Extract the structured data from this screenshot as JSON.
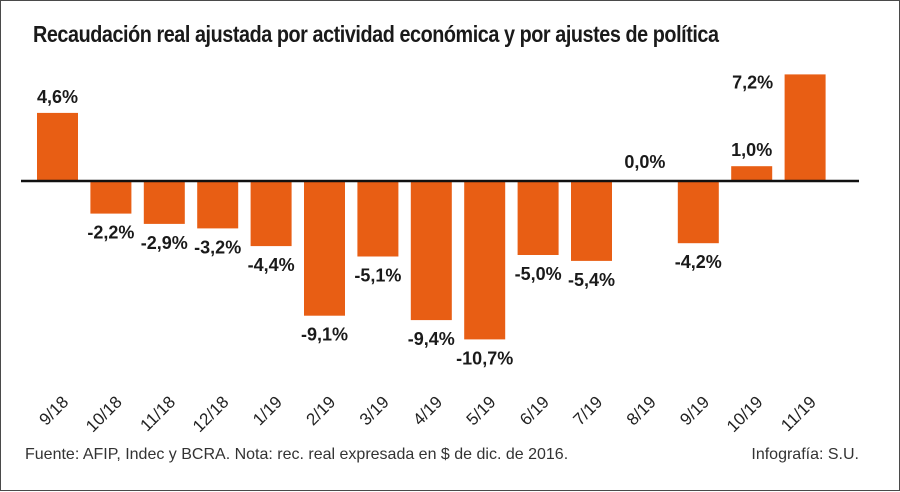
{
  "chart_data": {
    "type": "bar",
    "title": "Recaudación real ajustada por actividad económica y por ajustes de política",
    "xlabel": "",
    "ylabel": "",
    "categories": [
      "9/18",
      "10/18",
      "11/18",
      "12/18",
      "1/19",
      "2/19",
      "3/19",
      "4/19",
      "5/19",
      "6/19",
      "7/19",
      "8/19",
      "9/19",
      "10/19",
      "11/19"
    ],
    "values": [
      4.6,
      -2.2,
      -2.9,
      -3.2,
      -4.4,
      -9.1,
      -5.1,
      -9.4,
      -10.7,
      -5.0,
      -5.4,
      0.0,
      -4.2,
      1.0,
      7.2
    ],
    "data_labels": [
      "4,6%",
      "-2,2%",
      "-2,9%",
      "-3,2%",
      "-4,4%",
      "-9,1%",
      "-5,1%",
      "-9,4%",
      "-10,7%",
      "-5,0%",
      "-5,4%",
      "0,0%",
      "-4,2%",
      "1,0%",
      "7,2%"
    ],
    "ylim": [
      -10.7,
      7.2
    ],
    "grid": false,
    "legend": "none",
    "bar_color": "#e85e14",
    "baseline_color": "#111111"
  },
  "footer": {
    "source": "Fuente: AFIP, Indec y BCRA. Nota: rec. real expresada en $ de dic. de 2016.",
    "credit": "Infografía: S.U."
  }
}
